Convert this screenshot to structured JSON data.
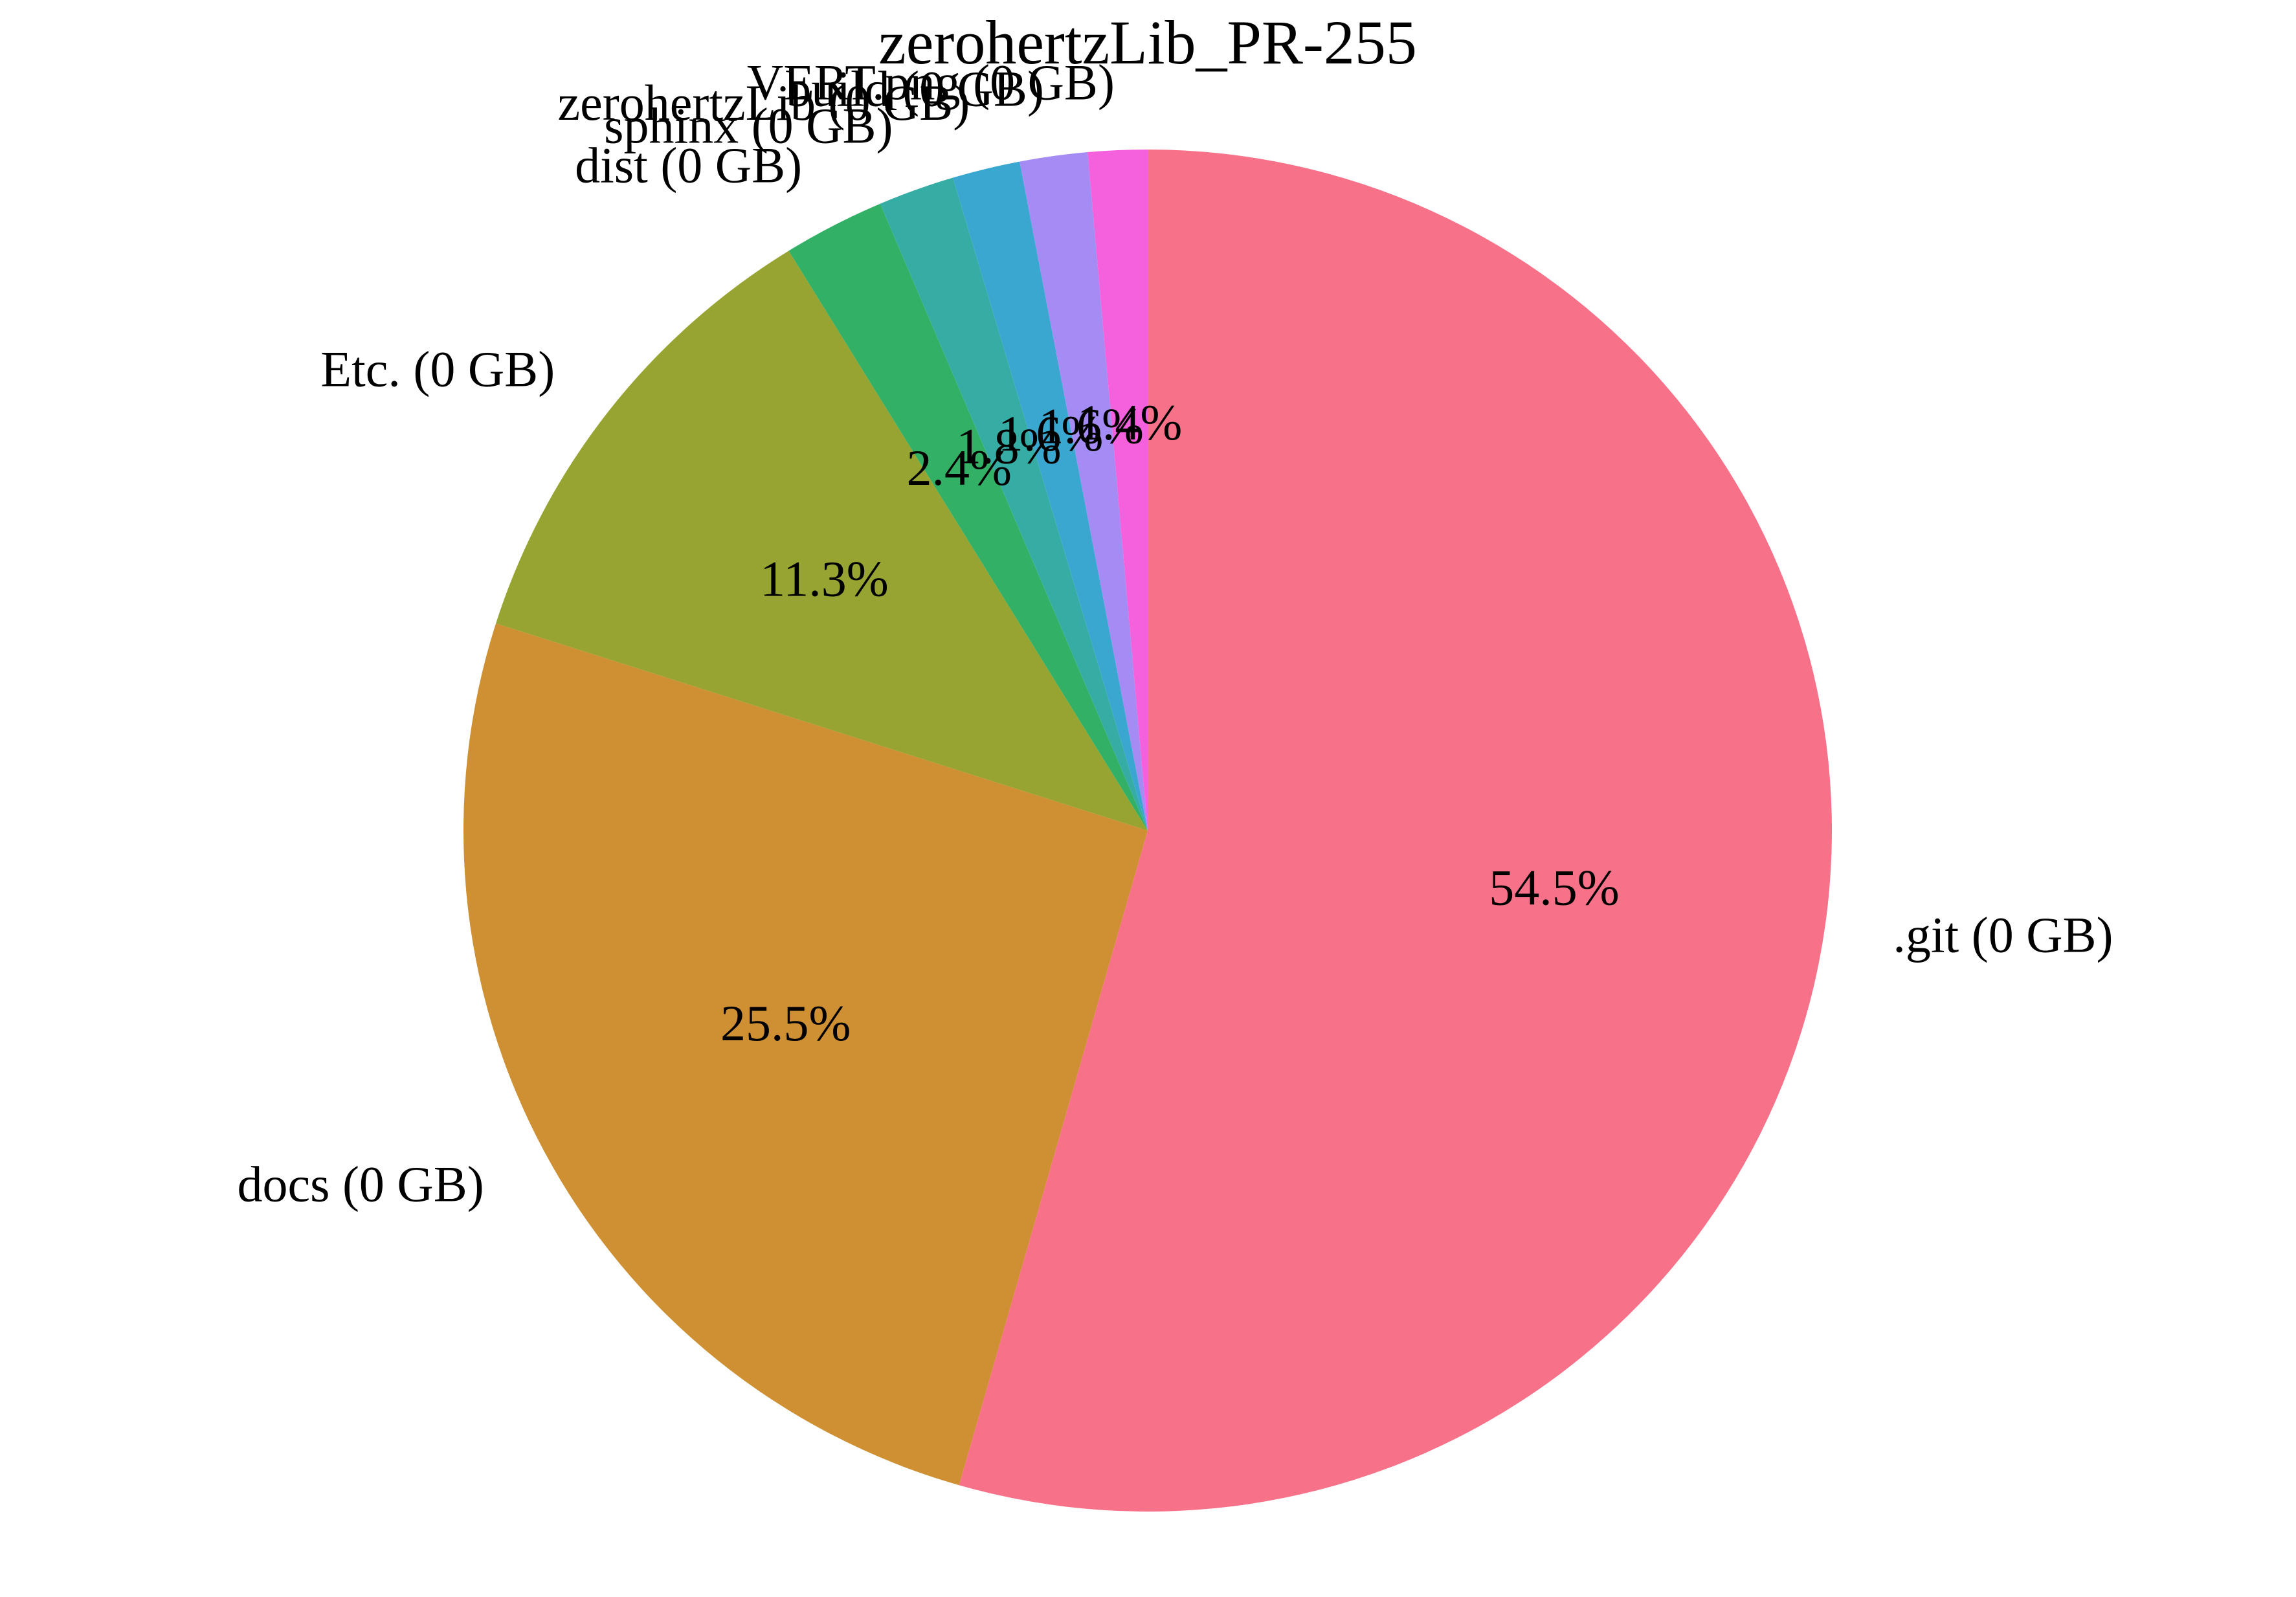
{
  "chart_data": {
    "type": "pie",
    "title": "zerohertzLib_PR-255",
    "start_angle_deg": 90,
    "direction": "clockwise",
    "slices": [
      {
        "label": ".git (0 GB)",
        "percent": 54.5,
        "pct_label": "54.5%",
        "color": "#f77189"
      },
      {
        "label": "docs (0 GB)",
        "percent": 25.5,
        "pct_label": "25.5%",
        "color": "#ce9032"
      },
      {
        "label": "Etc. (0 GB)",
        "percent": 11.3,
        "pct_label": "11.3%",
        "color": "#97a431"
      },
      {
        "label": "dist (0 GB)",
        "percent": 2.4,
        "pct_label": "2.4%",
        "color": "#32b166"
      },
      {
        "label": "sphinx (0 GB)",
        "percent": 1.8,
        "pct_label": "1.8%",
        "color": "#36ada4"
      },
      {
        "label": "zerohertzLib (0 GB)",
        "percent": 1.6,
        "pct_label": "1.6%",
        "color": "#39a7d0"
      },
      {
        "label": "build (0 GB)",
        "percent": 1.6,
        "pct_label": "1.6%",
        "color": "#a48cf4"
      },
      {
        "label": "VERT.png (0 GB)",
        "percent": 1.4,
        "pct_label": "1.4%",
        "color": "#f561dd"
      }
    ]
  }
}
